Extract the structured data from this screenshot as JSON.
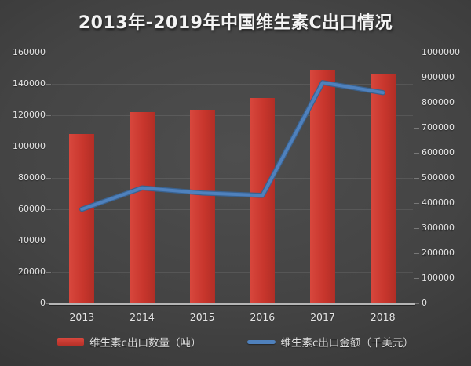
{
  "title": "2013年-2019年中国维生素C出口情况",
  "chart_data": {
    "type": "bar",
    "combo": "bar+line dual-axis",
    "title": "2013年-2019年中国维生素C出口情况",
    "categories": [
      "2013",
      "2014",
      "2015",
      "2016",
      "2017",
      "2018"
    ],
    "series": [
      {
        "name": "维生素c出口数量（吨）",
        "type": "bar",
        "axis": "left",
        "color": "#c8362d",
        "values": [
          108000,
          122000,
          123500,
          131000,
          149000,
          146000
        ]
      },
      {
        "name": "维生素c出口金额（千美元）",
        "type": "line",
        "axis": "right",
        "color": "#4f81bd",
        "values": [
          375000,
          460000,
          440000,
          430000,
          880000,
          840000
        ]
      }
    ],
    "left_axis": {
      "min": 0,
      "max": 160000,
      "step": 20000,
      "tick_labels": [
        "0",
        "20000",
        "40000",
        "60000",
        "80000",
        "100000",
        "120000",
        "140000",
        "160000"
      ]
    },
    "right_axis": {
      "min": 0,
      "max": 1000000,
      "step": 100000,
      "tick_labels": [
        "0",
        "100000",
        "200000",
        "300000",
        "400000",
        "500000",
        "600000",
        "700000",
        "800000",
        "900000",
        "1000000"
      ]
    },
    "legend_position": "bottom",
    "grid": true,
    "background": "dark"
  },
  "colors": {
    "bar": "#c8362d",
    "line": "#4f81bd",
    "line_edge": "#3a628f",
    "background_center": "#4e4e4e",
    "background_edge": "#343434",
    "gridline": "#545454",
    "axis_line": "#b5b5b5",
    "text": "#e6e6e6",
    "title_text": "#f4f4f4"
  }
}
